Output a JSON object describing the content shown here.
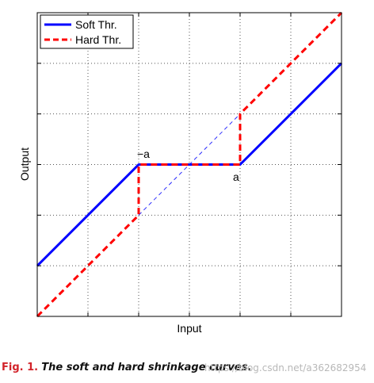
{
  "chart_data": {
    "type": "line",
    "xlabel": "Input",
    "ylabel": "Output",
    "xlim": [
      -3,
      3
    ],
    "ylim": [
      -3,
      3
    ],
    "grid": true,
    "legend_position": "top-left",
    "threshold_labels": {
      "neg": "−a",
      "pos": "a"
    },
    "series": [
      {
        "name": "Soft Thr.",
        "color": "#0000ff",
        "style": "solid",
        "x": [
          -3,
          -1,
          1,
          3
        ],
        "y": [
          -2,
          0,
          0,
          2
        ]
      },
      {
        "name": "Hard Thr.",
        "color": "#ff0000",
        "style": "dashed",
        "x": [
          -3,
          -1,
          -1,
          1,
          1,
          3
        ],
        "y": [
          -3,
          -1,
          0,
          0,
          1,
          3
        ]
      }
    ],
    "identity_line": {
      "color": "#0000ff",
      "style": "thin-dashed",
      "x": [
        -1,
        1
      ],
      "y": [
        -1,
        1
      ]
    }
  },
  "caption": {
    "fig_label": "Fig. 1.",
    "text": "The soft and hard shrinkage curves."
  },
  "watermark": "https://blog.csdn.net/a362682954"
}
